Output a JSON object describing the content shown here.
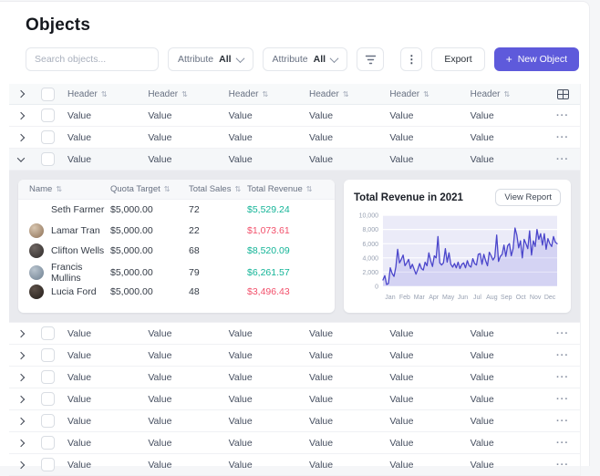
{
  "page": {
    "title": "Objects"
  },
  "colors": {
    "accent": "#5E5ADB",
    "positive": "#13B497",
    "negative": "#F2506B"
  },
  "toolbar": {
    "search_placeholder": "Search objects...",
    "filters": [
      {
        "label": "Attribute",
        "value": "All"
      },
      {
        "label": "Attribute",
        "value": "All"
      }
    ],
    "kebab_glyph": "⋮",
    "export_label": "Export",
    "new_object_plus": "+",
    "new_object_label": "New Object"
  },
  "table": {
    "headers": [
      "Header",
      "Header",
      "Header",
      "Header",
      "Header",
      "Header"
    ],
    "sort_glyph": "⇅",
    "row_ellipsis": "···",
    "rows_above": [
      [
        "Value",
        "Value",
        "Value",
        "Value",
        "Value",
        "Value"
      ],
      [
        "Value",
        "Value",
        "Value",
        "Value",
        "Value",
        "Value"
      ]
    ],
    "expanded_row": [
      "Value",
      "Value",
      "Value",
      "Value",
      "Value",
      "Value"
    ],
    "rows_below": [
      [
        "Value",
        "Value",
        "Value",
        "Value",
        "Value",
        "Value"
      ],
      [
        "Value",
        "Value",
        "Value",
        "Value",
        "Value",
        "Value"
      ],
      [
        "Value",
        "Value",
        "Value",
        "Value",
        "Value",
        "Value"
      ],
      [
        "Value",
        "Value",
        "Value",
        "Value",
        "Value",
        "Value"
      ],
      [
        "Value",
        "Value",
        "Value",
        "Value",
        "Value",
        "Value"
      ],
      [
        "Value",
        "Value",
        "Value",
        "Value",
        "Value",
        "Value"
      ],
      [
        "Value",
        "Value",
        "Value",
        "Value",
        "Value",
        "Value"
      ]
    ]
  },
  "detail": {
    "headers": [
      "Name",
      "Quota Target",
      "Total Sales",
      "Total Revenue"
    ],
    "rows": [
      {
        "name": "Seth Farmer",
        "quota": "$5,000.00",
        "sales": "72",
        "revenue": "$5,529.24",
        "trend": "positive"
      },
      {
        "name": "Lamar Tran",
        "quota": "$5,000.00",
        "sales": "22",
        "revenue": "$1,073.61",
        "trend": "negative"
      },
      {
        "name": "Clifton Wells",
        "quota": "$5,000.00",
        "sales": "68",
        "revenue": "$8,520.09",
        "trend": "positive"
      },
      {
        "name": "Francis Mullins",
        "quota": "$5,000.00",
        "sales": "79",
        "revenue": "$6,261.57",
        "trend": "positive"
      },
      {
        "name": "Lucia Ford",
        "quota": "$5,000.00",
        "sales": "48",
        "revenue": "$3,496.43",
        "trend": "negative"
      }
    ]
  },
  "chart_data": {
    "type": "line",
    "title": "Total Revenue in 2021",
    "action_label": "View Report",
    "x_labels": [
      "Jan",
      "Feb",
      "Mar",
      "Apr",
      "May",
      "Jun",
      "Jul",
      "Aug",
      "Sep",
      "Oct",
      "Nov",
      "Dec"
    ],
    "y_tick_labels": [
      "10,000",
      "8,000",
      "6,000",
      "4,000",
      "2,000",
      "0"
    ],
    "ylim": [
      0,
      10000
    ],
    "grid": true,
    "legend": false,
    "line_color": "#4A45CB",
    "area_color": "rgba(94,90,219,0.16)",
    "plot_bg": "#EBEBF8",
    "values": [
      900,
      1500,
      250,
      400,
      2600,
      1800,
      1400,
      2700,
      5200,
      3300,
      3800,
      4400,
      2900,
      3300,
      3800,
      2500,
      3100,
      2400,
      1700,
      2400,
      3200,
      2500,
      2300,
      3400,
      2900,
      4700,
      3600,
      2800,
      4300,
      4000,
      7000,
      3300,
      3000,
      3300,
      5300,
      3400,
      4700,
      3100,
      2700,
      3200,
      2600,
      3400,
      2500,
      3100,
      3300,
      2600,
      3600,
      2900,
      2700,
      3900,
      3200,
      3000,
      4500,
      4600,
      3100,
      4500,
      3600,
      2900,
      4800,
      4300,
      3700,
      4100,
      7200,
      3500,
      4200,
      4500,
      5800,
      4200,
      5700,
      6000,
      4300,
      5300,
      8200,
      7200,
      5400,
      6400,
      4000,
      6600,
      6000,
      5300,
      7800,
      4400,
      6400,
      5600,
      8000,
      6600,
      7400,
      5800,
      7400,
      5200,
      6700,
      6000,
      5600,
      7000,
      6200,
      6000
    ]
  }
}
